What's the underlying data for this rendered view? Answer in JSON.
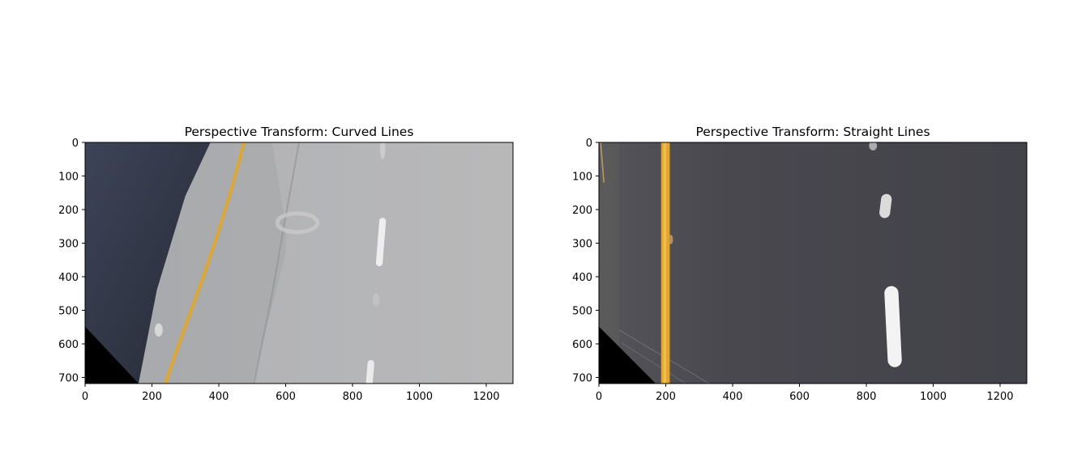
{
  "chart_data": [
    {
      "type": "image",
      "title": "Perspective Transform: Curved Lines",
      "xlabel": "",
      "ylabel": "",
      "xlim": [
        0,
        1280
      ],
      "ylim": [
        720,
        0
      ],
      "xticks": [
        0,
        200,
        400,
        600,
        800,
        1000,
        1200
      ],
      "yticks": [
        0,
        100,
        200,
        300,
        400,
        500,
        600,
        700
      ],
      "xtick_labels": [
        "0",
        "200",
        "400",
        "600",
        "800",
        "1000",
        "1200"
      ],
      "ytick_labels": [
        "0",
        "100",
        "200",
        "300",
        "400",
        "500",
        "600",
        "700"
      ],
      "content": "warped road image with curved yellow lane line",
      "colors": {
        "road": "#aeafb1",
        "shoulder": "#2f3444",
        "lane_yellow": "#d9a63a",
        "lane_white": "#f1f1f1"
      }
    },
    {
      "type": "image",
      "title": "Perspective Transform: Straight Lines",
      "xlabel": "",
      "ylabel": "",
      "xlim": [
        0,
        1280
      ],
      "ylim": [
        720,
        0
      ],
      "xticks": [
        0,
        200,
        400,
        600,
        800,
        1000,
        1200
      ],
      "yticks": [
        0,
        100,
        200,
        300,
        400,
        500,
        600,
        700
      ],
      "xtick_labels": [
        "0",
        "200",
        "400",
        "600",
        "800",
        "1000",
        "1200"
      ],
      "ytick_labels": [
        "0",
        "100",
        "200",
        "300",
        "400",
        "500",
        "600",
        "700"
      ],
      "content": "warped road image with straight yellow lane line",
      "colors": {
        "road": "#46464d",
        "shoulder": "#5a5858",
        "lane_yellow": "#e2a52e",
        "lane_white": "#f3f3f3"
      }
    }
  ]
}
